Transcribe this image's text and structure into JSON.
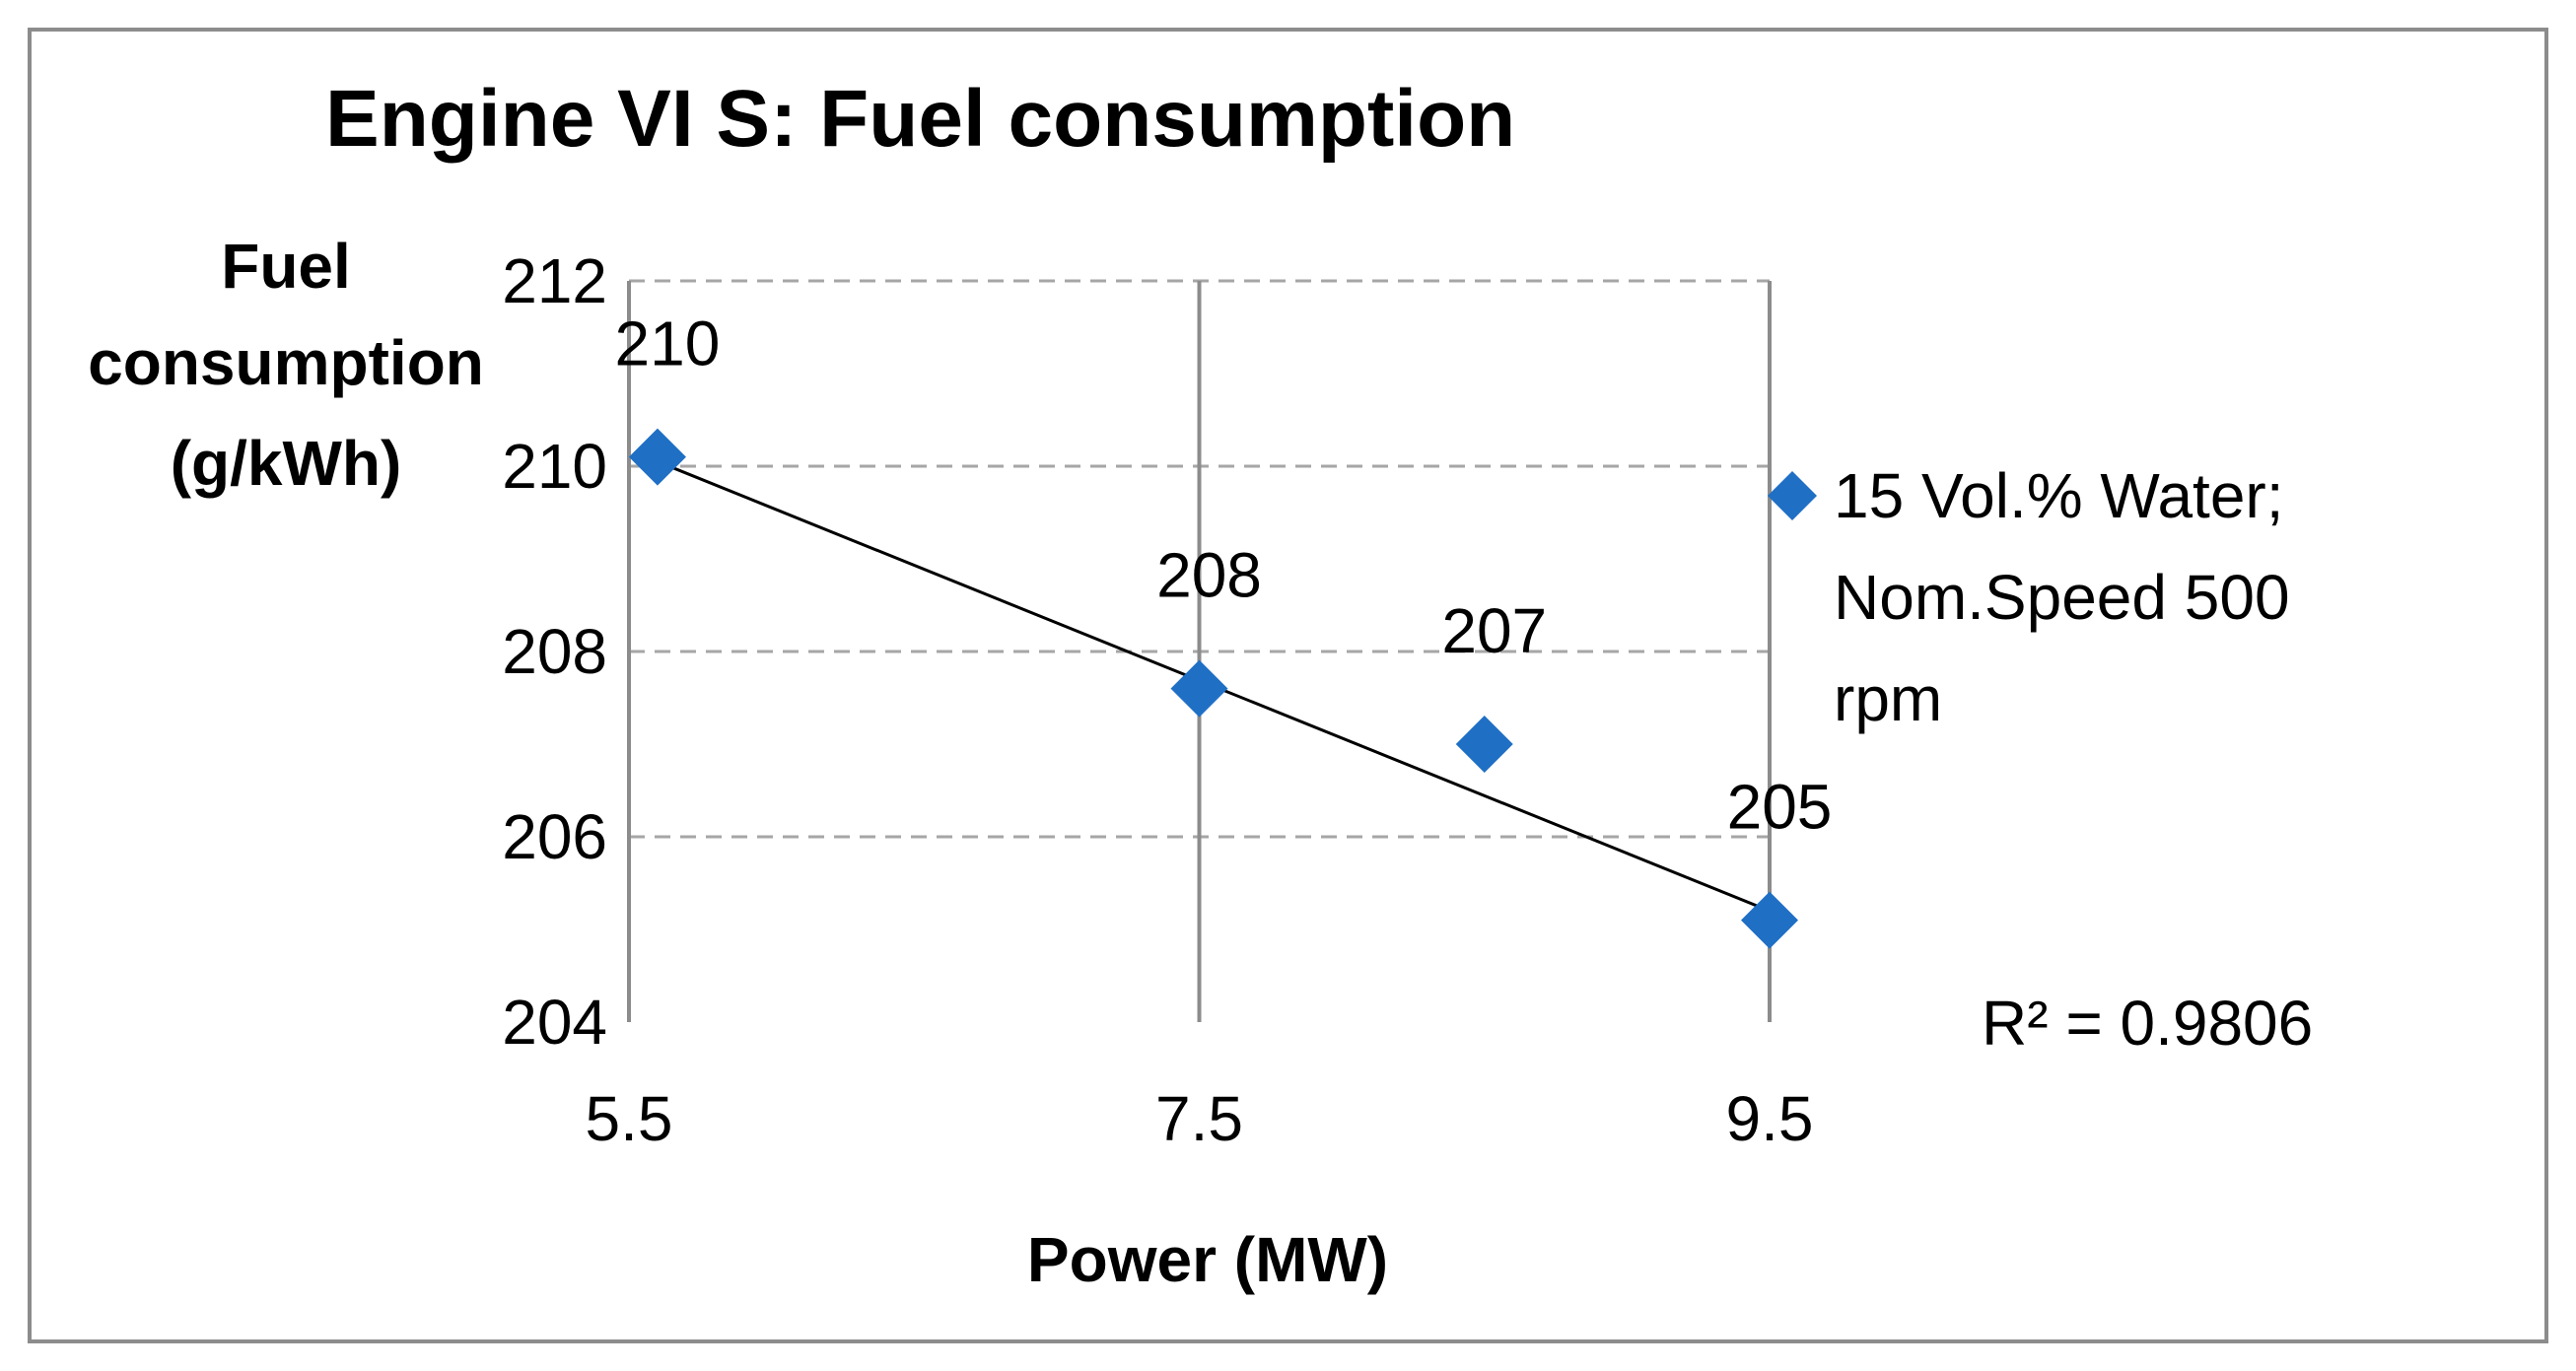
{
  "chart_data": {
    "type": "scatter",
    "title": "Engine VI S: Fuel consumption",
    "xlabel": "Power (MW)",
    "ylabel_lines": [
      "Fuel",
      "consumption",
      "(g/kWh)"
    ],
    "xlim": [
      5.5,
      9.5
    ],
    "ylim": [
      204,
      212
    ],
    "x_ticks": [
      5.5,
      7.5,
      9.5
    ],
    "x_tick_labels": [
      "5.5",
      "7.5",
      "9.5"
    ],
    "y_ticks": [
      204,
      206,
      208,
      210,
      212
    ],
    "y_tick_labels": [
      "204",
      "206",
      "208",
      "210",
      "212"
    ],
    "grid": "horizontal dashed, vertical solid",
    "series": [
      {
        "name": "15 Vol.% Water; Nom.Speed 500 rpm",
        "legend_lines": [
          "15 Vol.% Water;",
          "Nom.Speed 500",
          "rpm"
        ],
        "marker": "diamond",
        "color": "#1f6fc5",
        "x": [
          5.6,
          7.5,
          8.5,
          9.5
        ],
        "y": [
          210.1,
          207.6,
          207.0,
          205.1
        ],
        "labels": [
          "210",
          "208",
          "207",
          "205"
        ]
      }
    ],
    "trendline": {
      "type": "linear",
      "color": "#000000",
      "x": [
        5.6,
        9.5
      ],
      "y": [
        210.05,
        205.2
      ],
      "r_squared_label": "R² = 0.9806"
    },
    "legend_position": "right"
  }
}
